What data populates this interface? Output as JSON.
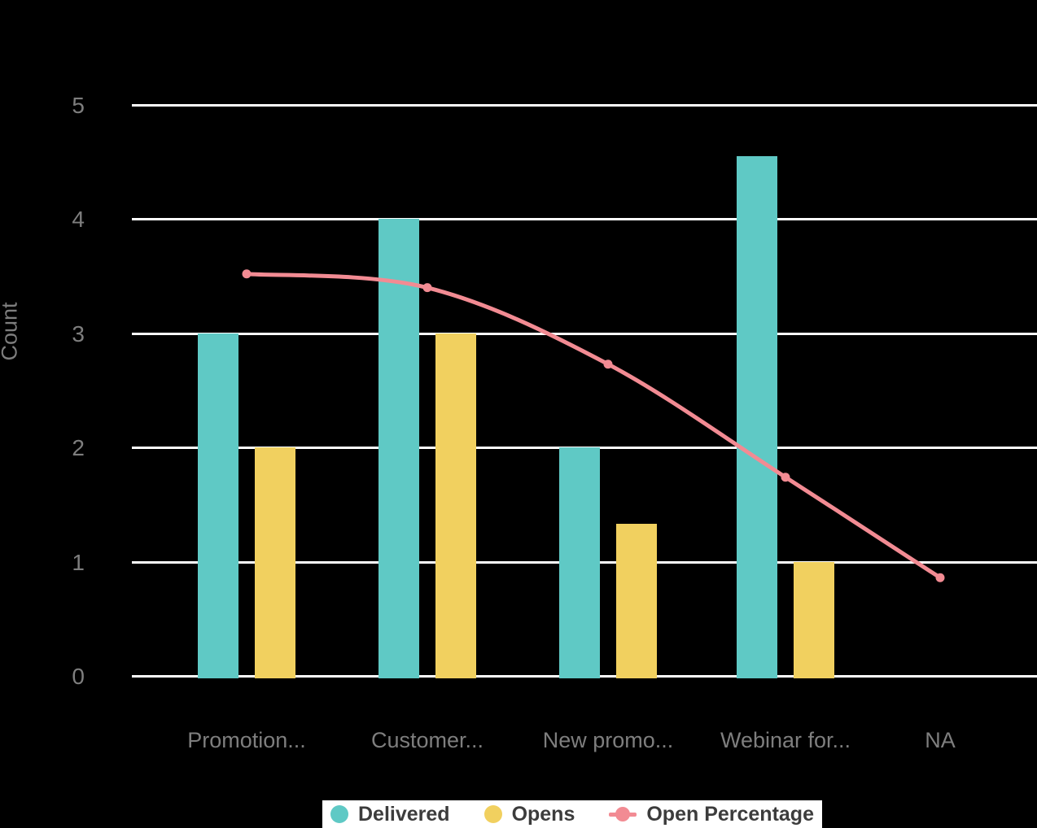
{
  "chart_data": {
    "type": "bar",
    "title": "",
    "categories": [
      "Promotion...",
      "Customer...",
      "New promo...",
      "Webinar for...",
      "NA"
    ],
    "series": [
      {
        "name": "Delivered",
        "type": "bar",
        "color": "#5FC9C5",
        "values": [
          3,
          4,
          2,
          4.55,
          null
        ]
      },
      {
        "name": "Opens",
        "type": "bar",
        "color": "#F1D05F",
        "values": [
          2,
          3,
          1.33,
          1,
          null
        ]
      },
      {
        "name": "Open Percentage",
        "type": "line",
        "color": "#F28B93",
        "values": [
          3.52,
          3.4,
          2.73,
          1.74,
          0.86
        ]
      }
    ],
    "xlabel": "",
    "ylabel": "Count",
    "ylim": [
      0,
      5
    ],
    "yticks": [
      0,
      1,
      2,
      3,
      4,
      5
    ],
    "grid": true,
    "legend_position": "bottom",
    "background_color": "#000000",
    "grid_color": "#FFFFFF",
    "axis_text_color": "#7E7E7E",
    "legend_background": "#FFFFFF",
    "legend_text_color": "#3C3C3C"
  }
}
